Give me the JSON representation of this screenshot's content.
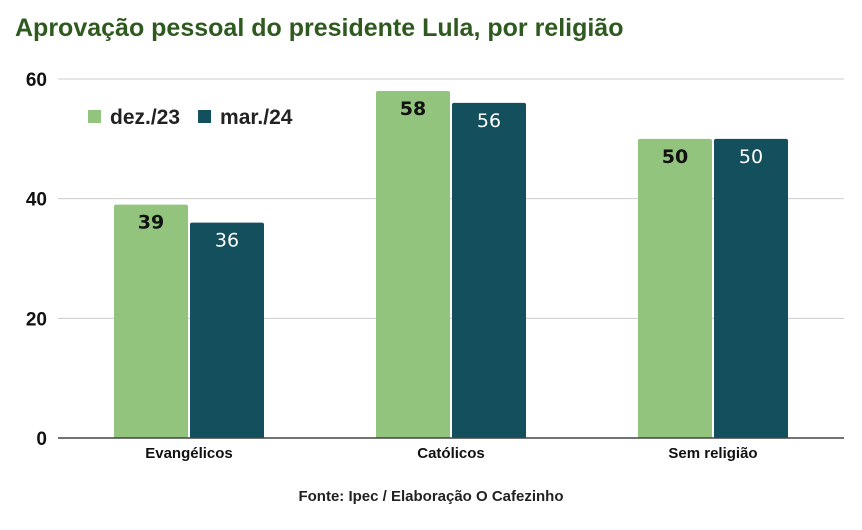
{
  "title": "Aprovação pessoal do presidente Lula, por religião",
  "source": "Fonte: Ipec / Elaboração O Cafezinho",
  "chart_data": {
    "type": "bar",
    "categories": [
      "Evangélicos",
      "Católicos",
      "Sem religião"
    ],
    "series": [
      {
        "name": "dez./23",
        "values": [
          39,
          58,
          50
        ],
        "color": "#93c47d",
        "label_color": "#111111"
      },
      {
        "name": "mar./24",
        "values": [
          36,
          56,
          50
        ],
        "color": "#134f5c",
        "label_color": "#ffffff"
      }
    ],
    "yticks": [
      0,
      20,
      40,
      60
    ],
    "ylim": [
      0,
      60
    ],
    "grid": true,
    "legend_position": "top-left"
  }
}
